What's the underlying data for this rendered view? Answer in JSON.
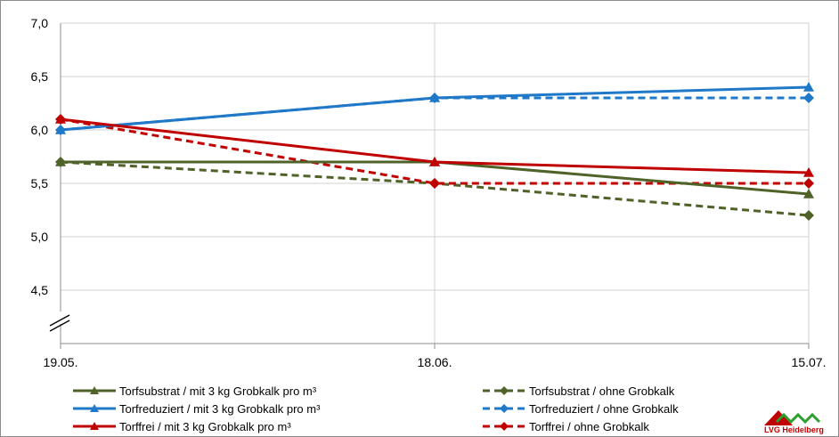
{
  "chart_data": {
    "type": "line",
    "categories": [
      "19.05.",
      "18.06.",
      "15.07."
    ],
    "ylim": [
      4.0,
      7.0
    ],
    "yticks": [
      "4,5",
      "5,0",
      "5,5",
      "6,0",
      "6,5",
      "7,0"
    ],
    "grid": true,
    "legend_position": "bottom",
    "series": [
      {
        "name": "Torfsubstrat / mit 3 kg Grobkalk pro m³",
        "values": [
          5.7,
          5.7,
          5.4
        ],
        "color": "#4f6228",
        "dash": false,
        "marker": "triangle"
      },
      {
        "name": "Torfsubstrat / ohne Grobkalk",
        "values": [
          5.7,
          5.5,
          5.2
        ],
        "color": "#4f6228",
        "dash": true,
        "marker": "diamond"
      },
      {
        "name": "Torfreduziert / mit 3 kg Grobkalk pro m³",
        "values": [
          6.0,
          6.3,
          6.4
        ],
        "color": "#1f78c8",
        "dash": false,
        "marker": "triangle"
      },
      {
        "name": "Torfreduziert / ohne Grobkalk",
        "values": [
          6.0,
          6.3,
          6.3
        ],
        "color": "#1f78c8",
        "dash": true,
        "marker": "diamond"
      },
      {
        "name": "Torffrei / mit 3 kg Grobkalk pro m³",
        "values": [
          6.1,
          5.7,
          5.6
        ],
        "color": "#c00000",
        "dash": false,
        "marker": "triangle"
      },
      {
        "name": "Torffrei / ohne Grobkalk",
        "values": [
          6.1,
          5.5,
          5.5
        ],
        "color": "#c00000",
        "dash": true,
        "marker": "diamond"
      }
    ]
  },
  "logo": {
    "text": "LVG Heidelberg"
  }
}
